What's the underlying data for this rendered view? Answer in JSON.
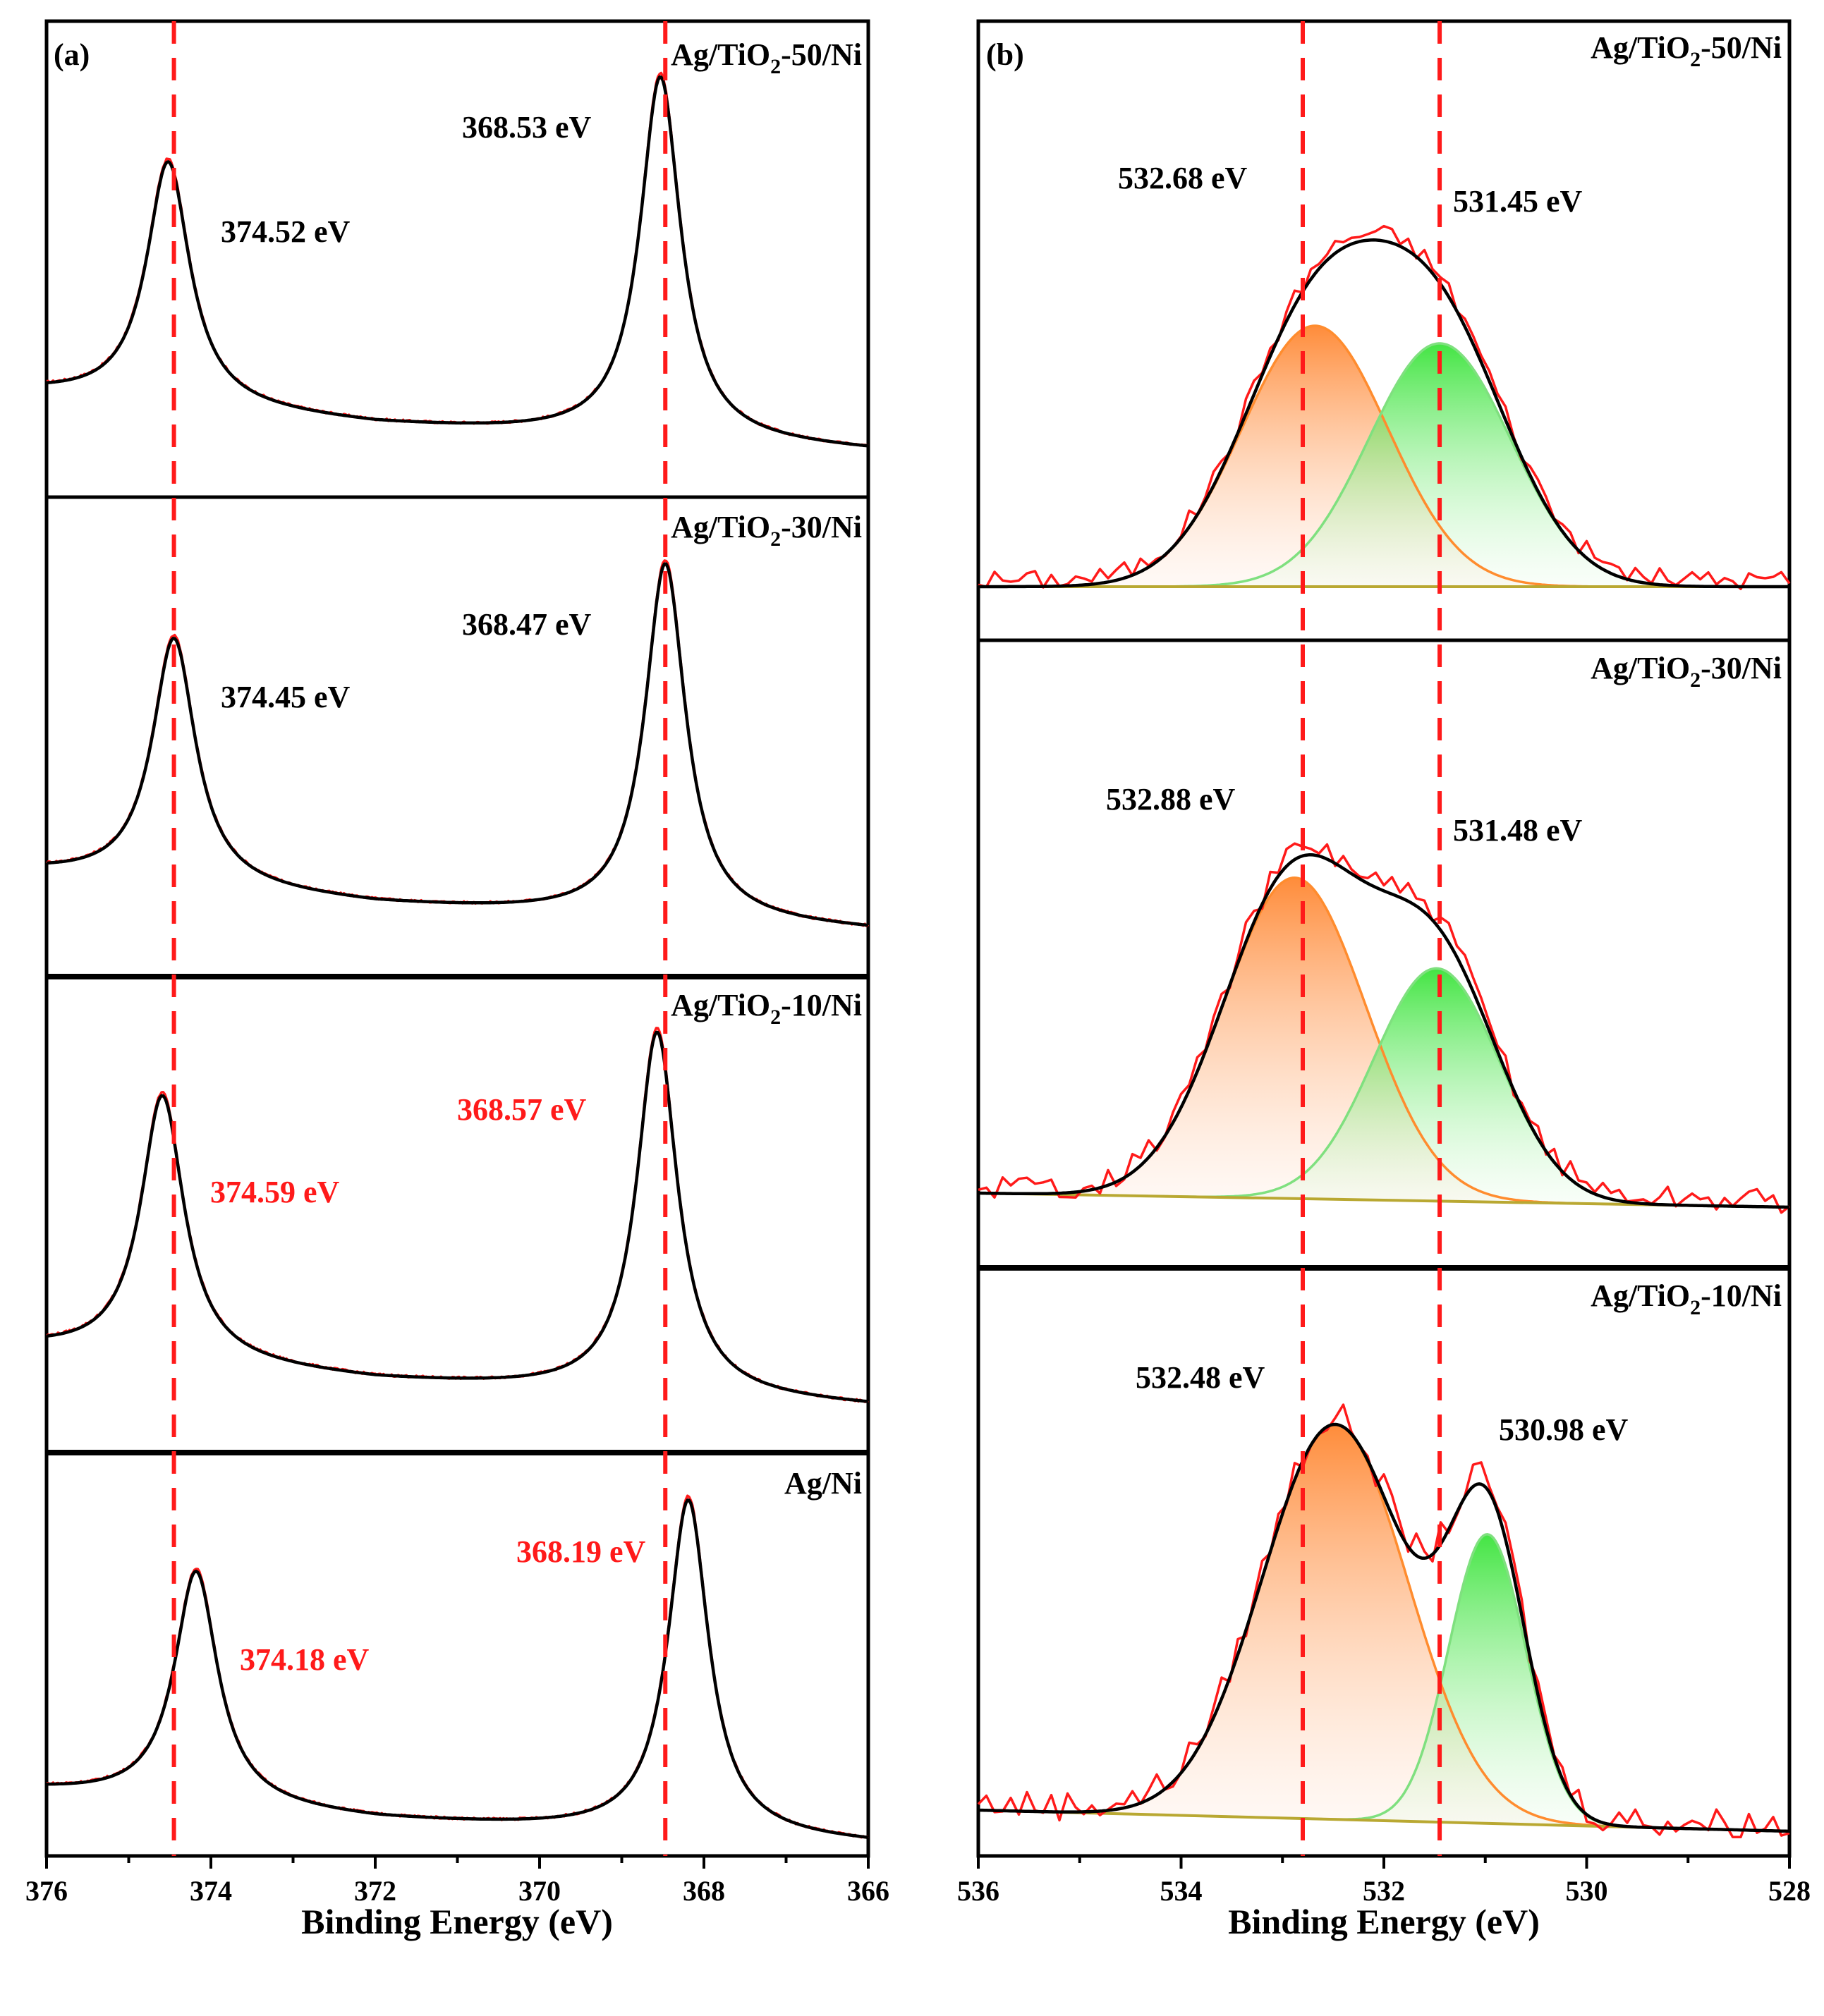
{
  "chart_data": [
    {
      "id": "a",
      "type": "line",
      "panel_label": "(a)",
      "xlabel": "Binding Energy (eV)",
      "xlim": [
        376,
        366
      ],
      "x_ticks": [
        "376",
        "374",
        "372",
        "370",
        "368",
        "366"
      ],
      "reference_lines_x": [
        374.45,
        368.47
      ],
      "colors": {
        "raw": "#ff1a1a",
        "fit": "#000000",
        "reference": "#ff1a1a"
      },
      "subplots": [
        {
          "sample": "Ag/TiO₂-50/Ni",
          "peaks": [
            374.52,
            368.53
          ],
          "labels": [
            {
              "text": "374.52 eV",
              "color": "#000000"
            },
            {
              "text": "368.53 eV",
              "color": "#000000"
            }
          ]
        },
        {
          "sample": "Ag/TiO₂-30/Ni",
          "peaks": [
            374.45,
            368.47
          ],
          "labels": [
            {
              "text": "374.45 eV",
              "color": "#000000"
            },
            {
              "text": "368.47 eV",
              "color": "#000000"
            }
          ]
        },
        {
          "sample": "Ag/TiO₂-10/Ni",
          "peaks": [
            374.59,
            368.57
          ],
          "labels": [
            {
              "text": "374.59 eV",
              "color": "#ff1a1a"
            },
            {
              "text": "368.57 eV",
              "color": "#ff1a1a"
            }
          ]
        },
        {
          "sample": "Ag/Ni",
          "peaks": [
            374.18,
            368.19
          ],
          "labels": [
            {
              "text": "374.18 eV",
              "color": "#ff1a1a"
            },
            {
              "text": "368.19 eV",
              "color": "#ff1a1a"
            }
          ]
        }
      ]
    },
    {
      "id": "b",
      "type": "area",
      "panel_label": "(b)",
      "xlabel": "Binding Energy (eV)",
      "xlim": [
        536,
        528
      ],
      "x_ticks": [
        "536",
        "534",
        "532",
        "530",
        "528"
      ],
      "reference_lines_x": [
        532.8,
        531.45
      ],
      "colors": {
        "raw": "#ff1a1a",
        "fit": "#000000",
        "component_1": "#ff8c2e",
        "component_2": "#2fdc2f",
        "baseline": "#b9a832"
      },
      "subplots": [
        {
          "sample": "Ag/TiO₂-50/Ni",
          "components": [
            {
              "center": 532.68,
              "label": "532.68 eV"
            },
            {
              "center": 531.45,
              "label": "531.45 eV"
            }
          ]
        },
        {
          "sample": "Ag/TiO₂-30/Ni",
          "components": [
            {
              "center": 532.88,
              "label": "532.88 eV"
            },
            {
              "center": 531.48,
              "label": "531.48 eV"
            }
          ]
        },
        {
          "sample": "Ag/TiO₂-10/Ni",
          "components": [
            {
              "center": 532.48,
              "label": "532.48 eV"
            },
            {
              "center": 530.98,
              "label": "530.98 eV"
            }
          ]
        }
      ]
    }
  ]
}
